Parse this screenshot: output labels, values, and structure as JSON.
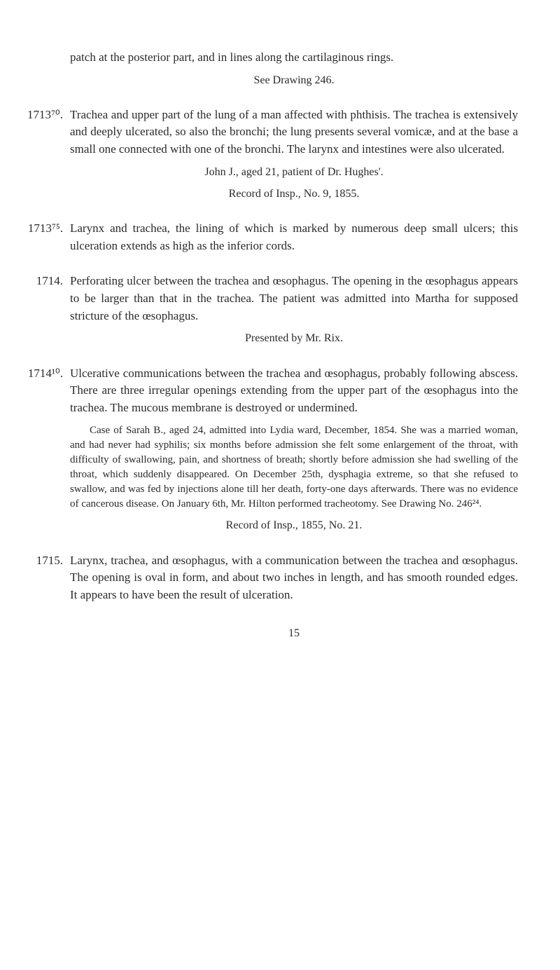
{
  "entries": [
    {
      "num": "",
      "paras": [
        "patch at the posterior part, and in lines along the cartilaginous rings."
      ],
      "center": [
        "See Drawing 246."
      ]
    },
    {
      "num": "1713⁷⁰.",
      "paras": [
        "Trachea and upper part of the lung of a man affected with phthisis. The trachea is extensively and deeply ulcerated, so also the bronchi; the lung presents several vomicæ, and at the base a small one connected with one of the bronchi. The larynx and intestines were also ulcerated."
      ],
      "center": [
        "John J., aged 21, patient of Dr. Hughes'.",
        "Record of Insp., No. 9, 1855."
      ]
    },
    {
      "num": "1713⁷⁵.",
      "paras": [
        "Larynx and trachea, the lining of which is marked by numerous deep small ulcers; this ulceration extends as high as the inferior cords."
      ]
    },
    {
      "num": "1714.",
      "paras": [
        "Perforating ulcer between the trachea and œsophagus. The opening in the œsophagus appears to be larger than that in the trachea. The patient was admitted into Martha for supposed stricture of the œsophagus."
      ],
      "center": [
        "Presented by Mr. Rix."
      ]
    },
    {
      "num": "1714¹⁰.",
      "paras": [
        "Ulcerative communications between the trachea and œsophagus, probably following abscess. There are three irregular openings extending from the upper part of the œsophagus into the trachea. The mucous membrane is destroyed or undermined."
      ],
      "small": [
        "Case of Sarah B., aged 24, admitted into Lydia ward, December, 1854. She was a married woman, and had never had syphilis; six months before admission she felt some enlargement of the throat, with difficulty of swallowing, pain, and shortness of breath; shortly before admission she had swelling of the throat, which suddenly disappeared. On December 25th, dysphagia extreme, so that she refused to swallow, and was fed by injections alone till her death, forty-one days afterwards. There was no evidence of cancerous disease. On January 6th, Mr. Hilton performed tracheotomy. See Drawing No. 246²⁴."
      ],
      "center2": [
        "Record of Insp., 1855, No. 21."
      ]
    },
    {
      "num": "1715.",
      "paras": [
        "Larynx, trachea, and œsophagus, with a communication between the trachea and œsophagus. The opening is oval in form, and about two inches in length, and has smooth rounded edges. It appears to have been the result of ulceration."
      ]
    }
  ],
  "pagenum": "15"
}
